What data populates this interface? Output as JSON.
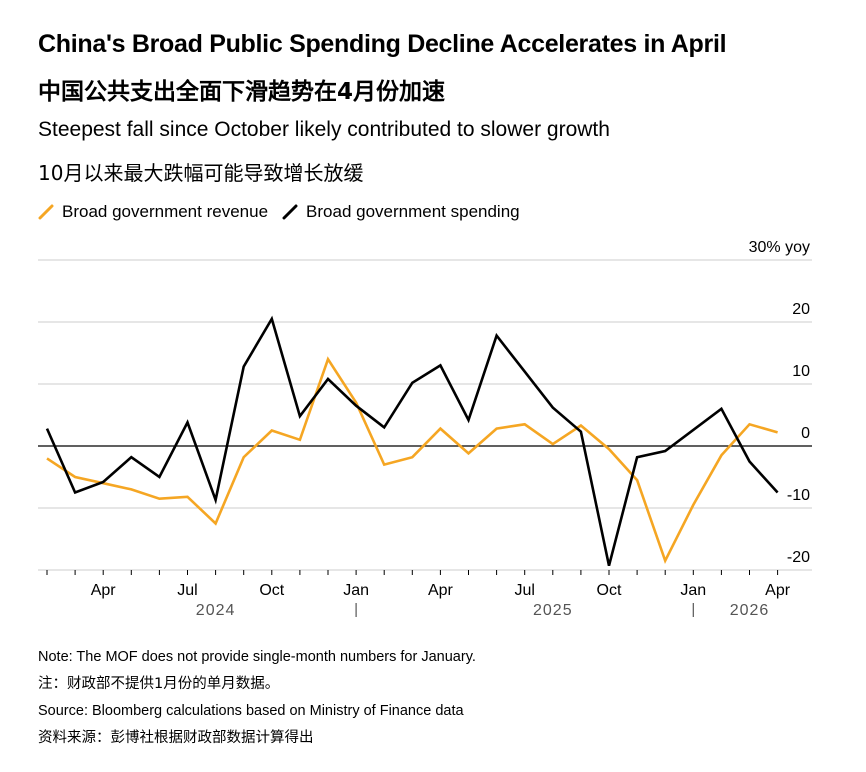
{
  "header": {
    "title": "China's Broad Public Spending Decline Accelerates in April",
    "title_zh": "中国公共支出全面下滑趋势在4月份加速",
    "subtitle": "Steepest fall since October likely contributed to slower growth",
    "subtitle_zh": "10月以来最大跌幅可能导致增长放缓"
  },
  "legend": [
    {
      "label": "Broad government revenue",
      "color": "#f5a623"
    },
    {
      "label": "Broad government spending",
      "color": "#000000"
    }
  ],
  "chart_data": {
    "type": "line",
    "x": [
      "2024-02",
      "2024-03",
      "2024-04",
      "2024-05",
      "2024-06",
      "2024-07",
      "2024-08",
      "2024-09",
      "2024-10",
      "2024-11",
      "2024-12",
      "2025-01",
      "2025-02",
      "2025-03",
      "2025-04",
      "2025-05",
      "2025-06",
      "2025-07",
      "2025-08",
      "2025-09",
      "2025-10",
      "2025-11",
      "2025-12",
      "2026-01",
      "2026-02",
      "2026-03",
      "2026-04"
    ],
    "series": [
      {
        "name": "Broad government revenue",
        "color": "#f5a623",
        "values": [
          -2,
          -5,
          -6,
          -7,
          -8.5,
          -8.2,
          -12.5,
          -1.8,
          2.5,
          1,
          14,
          7,
          -3,
          -1.8,
          2.8,
          -1.2,
          2.8,
          3.5,
          0.3,
          3.3,
          -0.5,
          -5.5,
          -18.5,
          -9.5,
          -1.5,
          3.5,
          2.2
        ]
      },
      {
        "name": "Broad government spending",
        "color": "#000000",
        "values": [
          2.8,
          -7.5,
          -5.8,
          -1.8,
          -5,
          3.8,
          -8.7,
          12.8,
          20.5,
          4.8,
          10.8,
          6.5,
          3,
          10.2,
          13,
          4.2,
          17.8,
          12,
          6.2,
          2.3,
          -19.3,
          -1.8,
          -0.8,
          null,
          6,
          -2.5,
          -7.5
        ]
      }
    ],
    "ylim": [
      -20,
      30
    ],
    "yticks": [
      -20,
      -10,
      0,
      10,
      20,
      30
    ],
    "ytick_labels": [
      "-20",
      "-10",
      "0",
      "10",
      "20",
      "30% yoy"
    ],
    "xtick_labels": [
      {
        "x": "2024-04",
        "label": "Apr"
      },
      {
        "x": "2024-07",
        "label": "Jul"
      },
      {
        "x": "2024-10",
        "label": "Oct"
      },
      {
        "x": "2025-01",
        "label": "Jan"
      },
      {
        "x": "2025-04",
        "label": "Apr"
      },
      {
        "x": "2025-07",
        "label": "Jul"
      },
      {
        "x": "2025-10",
        "label": "Oct"
      },
      {
        "x": "2026-01",
        "label": "Jan"
      },
      {
        "x": "2026-04",
        "label": "Apr"
      }
    ],
    "year_labels": [
      {
        "x": "2024-08",
        "label": "2024"
      },
      {
        "x": "2025-08",
        "label": "2025"
      },
      {
        "x": "2026-03",
        "label": "2026"
      }
    ],
    "year_separators": [
      "2025-01",
      "2026-01"
    ],
    "grid": true,
    "legend_position": "top-left"
  },
  "footer": {
    "note": "Note: The MOF does not provide single-month numbers for January.",
    "note_zh": "注：财政部不提供1月份的单月数据。",
    "source": "Source: Bloomberg calculations based on Ministry of Finance data",
    "source_zh": "资料来源：彭博社根据财政部数据计算得出"
  }
}
